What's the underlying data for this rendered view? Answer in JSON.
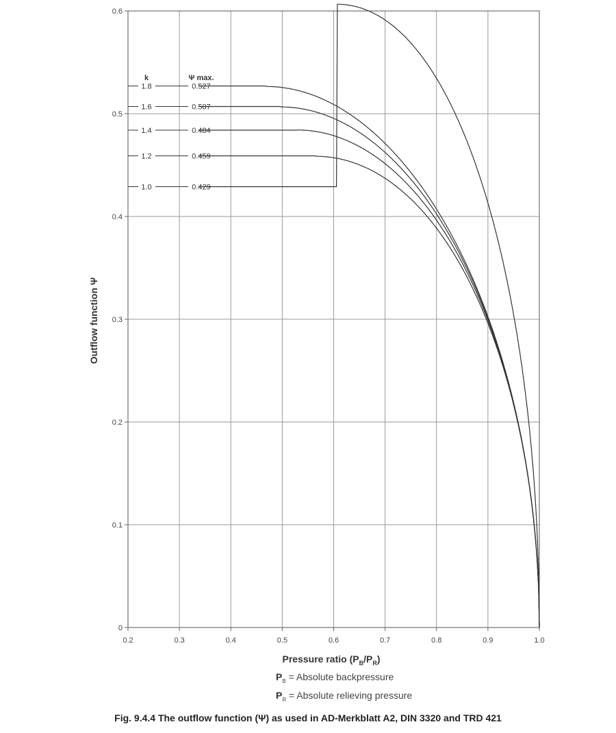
{
  "chart_data": {
    "type": "line",
    "xlabel_main": "Pressure ratio (P",
    "xlabel_sub1": "B",
    "xlabel_slash": "/P",
    "xlabel_sub2": "R",
    "xlabel_close": ")",
    "ylabel": "Outflow function  Ψ",
    "xlim": [
      0.2,
      1.0
    ],
    "ylim": [
      0,
      0.6
    ],
    "x_ticks": [
      "0.2",
      "0.3",
      "0.4",
      "0.5",
      "0.6",
      "0.7",
      "0.8",
      "0.9",
      "1.0"
    ],
    "y_ticks": [
      "0",
      "0.1",
      "0.2",
      "0.3",
      "0.4",
      "0.5",
      "0.6"
    ],
    "grid": true,
    "table_header_k": "k",
    "table_header_psi": "Ψ max.",
    "series": [
      {
        "name": "1.8",
        "psi_max_label": "0.527",
        "k": 1.8,
        "psi_max": 0.527
      },
      {
        "name": "1.6",
        "psi_max_label": "0.507",
        "k": 1.6,
        "psi_max": 0.507
      },
      {
        "name": "1.4",
        "psi_max_label": "0.484",
        "k": 1.4,
        "psi_max": 0.484
      },
      {
        "name": "1.2",
        "psi_max_label": "0.459",
        "k": 1.2,
        "psi_max": 0.459
      },
      {
        "name": "1.0",
        "psi_max_label": "0.429",
        "k": 1.0,
        "psi_max": 0.429
      }
    ]
  },
  "legend": {
    "pb_symbol": "P",
    "pb_sub": "B",
    "pb_text": "=  Absolute backpressure",
    "pr_symbol": "P",
    "pr_sub": "R",
    "pr_text": "=  Absolute relieving pressure"
  },
  "caption": "Fig. 9.4.4  The outflow function (Ψ) as used in AD-Merkblatt A2, DIN 3320 and TRD 421"
}
